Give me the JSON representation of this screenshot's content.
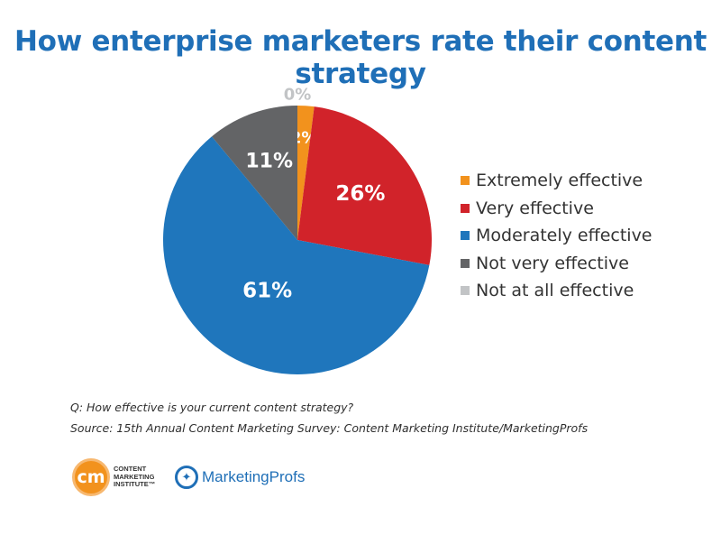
{
  "chart_data": {
    "type": "pie",
    "title": "How enterprise marketers rate their content strategy",
    "slices": [
      {
        "label": "Extremely effective",
        "value": 2,
        "value_label": "2%",
        "color": "#f2921d"
      },
      {
        "label": "Very effective",
        "value": 26,
        "value_label": "26%",
        "color": "#d1232a"
      },
      {
        "label": "Moderately effective",
        "value": 61,
        "value_label": "61%",
        "color": "#1f76bc"
      },
      {
        "label": "Not very effective",
        "value": 11,
        "value_label": "11%",
        "color": "#636466"
      },
      {
        "label": "Not at all effective",
        "value": 0,
        "value_label": "0%",
        "color": "#c2c4c6"
      }
    ],
    "start": "12 o'clock",
    "direction": "clockwise",
    "legend_position": "right"
  },
  "title_color": "#1f6fb7",
  "footnote": {
    "question": "Q: How effective is your current content strategy?",
    "source": "Source: 15th Annual Content Marketing Survey: Content Marketing Institute/MarketingProfs"
  },
  "logos": {
    "cmi": {
      "mark": "cm",
      "text": "CONTENT\nMARKETING\nINSTITUTE™"
    },
    "marketingprofs": {
      "mark_icon": "compass-icon",
      "text": "MarketingProfs"
    }
  }
}
